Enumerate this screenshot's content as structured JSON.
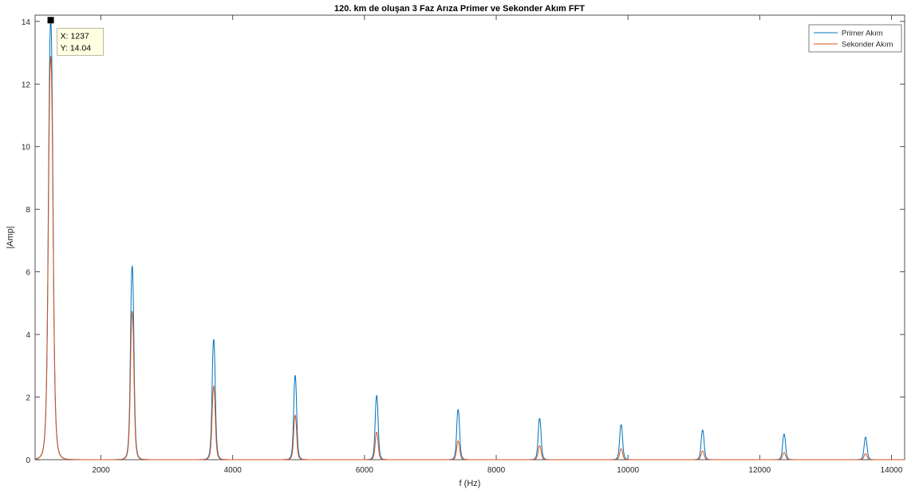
{
  "chart_data": {
    "type": "line",
    "title": "120. km de oluşan 3 Faz Arıza Primer ve Sekonder Akım FFT",
    "xlabel": "f (Hz)",
    "ylabel": "|Amp|",
    "xlim": [
      1000,
      14200
    ],
    "ylim": [
      0,
      14.2
    ],
    "xticks": [
      2000,
      4000,
      6000,
      8000,
      10000,
      12000,
      14000
    ],
    "yticks": [
      0,
      2,
      4,
      6,
      8,
      10,
      12,
      14
    ],
    "grid": false,
    "legend_position": "top-right",
    "peak_frequencies": [
      1237,
      2474,
      3711,
      4948,
      6185,
      7422,
      8659,
      9896,
      11133,
      12370,
      13607
    ],
    "series": [
      {
        "name": "Primer Akım",
        "color": "#0072bd",
        "peak_values": [
          14.04,
          6.2,
          3.85,
          2.7,
          2.05,
          1.6,
          1.32,
          1.12,
          0.95,
          0.82,
          0.72
        ]
      },
      {
        "name": "Sekonder Akım",
        "color": "#d95319",
        "peak_values": [
          12.9,
          4.75,
          2.35,
          1.42,
          0.88,
          0.6,
          0.45,
          0.35,
          0.28,
          0.23,
          0.19
        ]
      }
    ],
    "datatip": {
      "x_text": "X: 1237",
      "y_text": "Y: 14.04",
      "x": 1237,
      "y": 14.04
    }
  }
}
